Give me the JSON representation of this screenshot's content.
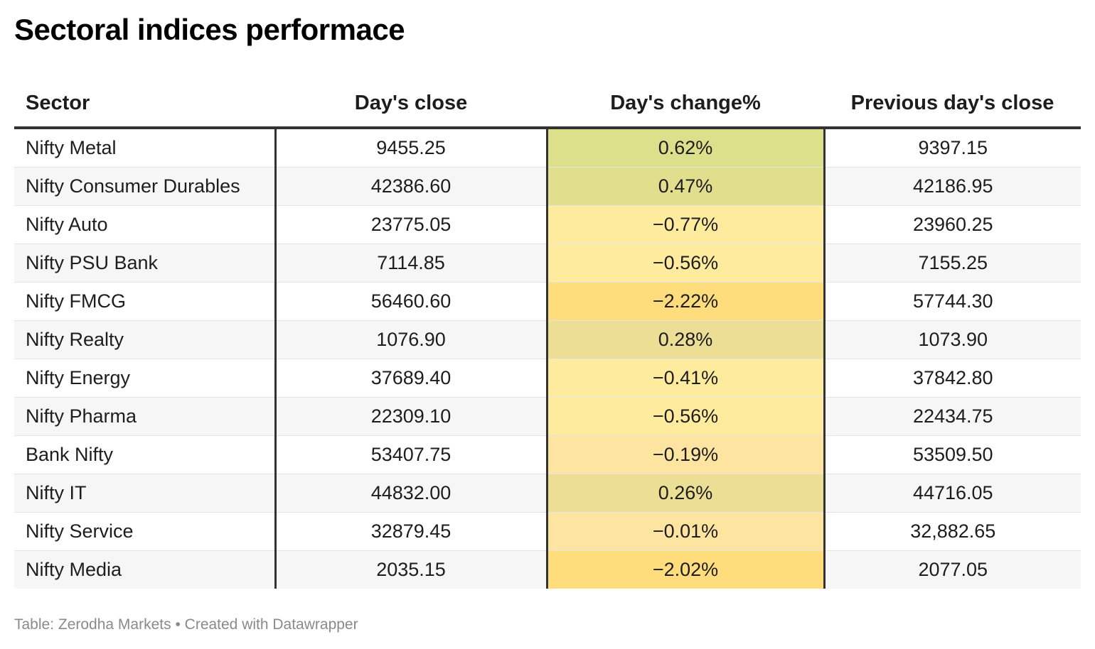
{
  "title": "Sectoral indices performace",
  "footer": {
    "source_label": "Table: Zerodha Markets",
    "separator": "•",
    "credit": "Created with Datawrapper"
  },
  "heat_colors": {
    "strong_positive": "#dde08a",
    "positive": "#e1df8d",
    "mild_positive": "#ecdf95",
    "neutral": "#fde4a0",
    "mild_negative": "#ffeb9e",
    "strong_negative": "#ffdc7c"
  },
  "chart_data": {
    "type": "table",
    "title": "Sectoral indices performace",
    "columns": [
      "Sector",
      "Day's close",
      "Day's change%",
      "Previous day's close"
    ],
    "rows": [
      {
        "sector": "Nifty Metal",
        "close": "9455.25",
        "change": "0.62%",
        "prev": "9397.15",
        "change_value": 0.62
      },
      {
        "sector": "Nifty Consumer Durables",
        "close": "42386.60",
        "change": "0.47%",
        "prev": "42186.95",
        "change_value": 0.47
      },
      {
        "sector": "Nifty Auto",
        "close": "23775.05",
        "change": "-0.77%",
        "prev": "23960.25",
        "change_value": -0.77
      },
      {
        "sector": "Nifty PSU Bank",
        "close": "7114.85",
        "change": "-0.56%",
        "prev": "7155.25",
        "change_value": -0.56
      },
      {
        "sector": "Nifty FMCG",
        "close": "56460.60",
        "change": "-2.22%",
        "prev": "57744.30",
        "change_value": -2.22
      },
      {
        "sector": "Nifty Realty",
        "close": "1076.90",
        "change": "0.28%",
        "prev": "1073.90",
        "change_value": 0.28
      },
      {
        "sector": "Nifty Energy",
        "close": "37689.40",
        "change": "-0.41%",
        "prev": "37842.80",
        "change_value": -0.41
      },
      {
        "sector": "Nifty Pharma",
        "close": "22309.10",
        "change": "-0.56%",
        "prev": "22434.75",
        "change_value": -0.56
      },
      {
        "sector": "Bank Nifty",
        "close": "53407.75",
        "change": "-0.19%",
        "prev": "53509.50",
        "change_value": -0.19
      },
      {
        "sector": "Nifty IT",
        "close": "44832.00",
        "change": "0.26%",
        "prev": "44716.05",
        "change_value": 0.26
      },
      {
        "sector": "Nifty Service",
        "close": "32879.45",
        "change": "-0.01%",
        "prev": "32,882.65",
        "change_value": -0.01
      },
      {
        "sector": "Nifty Media",
        "close": "2035.15",
        "change": "-2.02%",
        "prev": "2077.05",
        "change_value": -2.02
      }
    ]
  }
}
